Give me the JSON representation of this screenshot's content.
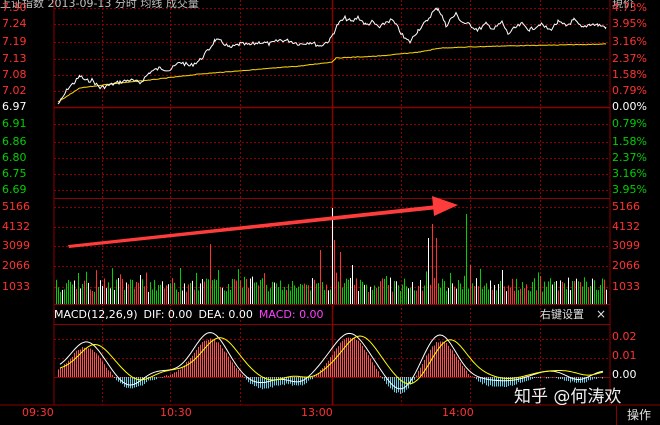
{
  "header": {
    "text": "上证指数 2013-09-13 分时 均线 成交量",
    "right_label": "現价"
  },
  "price_axis": {
    "left": [
      "7.30",
      "7.24",
      "7.19",
      "7.13",
      "7.08",
      "7.02",
      "6.97",
      "6.91",
      "6.86",
      "6.80",
      "6.75",
      "6.69"
    ],
    "right": [
      "4.73%",
      "3.95%",
      "3.16%",
      "2.37%",
      "1.58%",
      "0.79%",
      "0.00%",
      "0.79%",
      "1.58%",
      "2.37%",
      "3.16%",
      "3.95%"
    ]
  },
  "volume_axis": {
    "left": [
      "5166",
      "4132",
      "3099",
      "2066",
      "1033"
    ],
    "right": [
      "5166",
      "4132",
      "3099",
      "2066",
      "1033"
    ]
  },
  "macd": {
    "label": "MACD(12,26,9)",
    "dif": "DIF: 0.00",
    "dea": "DEA: 0.00",
    "macd_value": "MACD: 0.00",
    "settings_label": "右键设置",
    "close_label": "×",
    "axis": [
      "0.02",
      "0.01",
      "0.00"
    ]
  },
  "time_axis": [
    "09:30",
    "10:30",
    "13:00",
    "14:00"
  ],
  "operate_label": "操作",
  "watermark": "知乎 @何涛欢",
  "colors": {
    "up": "#ff3232",
    "down": "#00d000",
    "grid": "#8b0000",
    "price_line": "#ffffff",
    "avg_line": "#ffd700",
    "macd_neg": "#5fd0e8",
    "arrow": "#ff3c3c",
    "dea": "#ffff00"
  }
}
